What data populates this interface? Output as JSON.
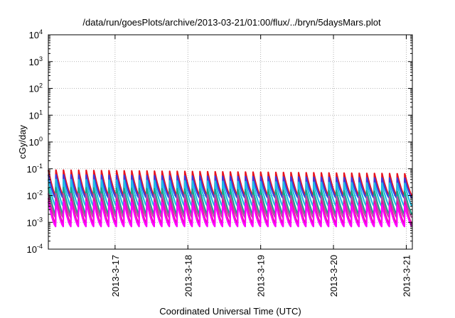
{
  "chart_data": {
    "type": "line",
    "title": "/data/run/goesPlots/archive/2013-03-21/01:00/flux/../bryn/5daysMars.plot",
    "xlabel": "Coordinated Universal Time (UTC)",
    "ylabel": "cGy/day",
    "y_scale": "log",
    "ylim": [
      0.0001,
      10000
    ],
    "xlim": [
      "2013-03-16 02:00",
      "2013-03-21 02:00"
    ],
    "x_ticks": [
      "2013-3-17",
      "2013-3-18",
      "2013-3-19",
      "2013-3-20",
      "2013-3-21"
    ],
    "y_ticks": [
      {
        "base": "10",
        "exp": "-4"
      },
      {
        "base": "10",
        "exp": "-3"
      },
      {
        "base": "10",
        "exp": "-2"
      },
      {
        "base": "10",
        "exp": "-1"
      },
      {
        "base": "10",
        "exp": "0"
      },
      {
        "base": "10",
        "exp": "1"
      },
      {
        "base": "10",
        "exp": "2"
      },
      {
        "base": "10",
        "exp": "3"
      },
      {
        "base": "10",
        "exp": "4"
      }
    ],
    "grid": true,
    "legend": "none",
    "pattern": "sawtooth, about 9.6 cycles per day",
    "series": [
      {
        "color": "#e8121d",
        "values_range": [
          0.01,
          0.09
        ]
      },
      {
        "color": "#3c3cdc",
        "values_range": [
          0.008,
          0.06
        ]
      },
      {
        "color": "#1ec0e6",
        "values_range": [
          0.004,
          0.04
        ]
      },
      {
        "color": "#14a98b",
        "values_range": [
          0.002,
          0.02
        ]
      },
      {
        "color": "#b84fa0",
        "values_range": [
          0.0015,
          0.012
        ]
      },
      {
        "color": "#e6119c",
        "values_range": [
          0.0009,
          0.008
        ]
      },
      {
        "color": "#ff00ff",
        "values_range": [
          0.0007,
          0.006
        ]
      }
    ]
  }
}
